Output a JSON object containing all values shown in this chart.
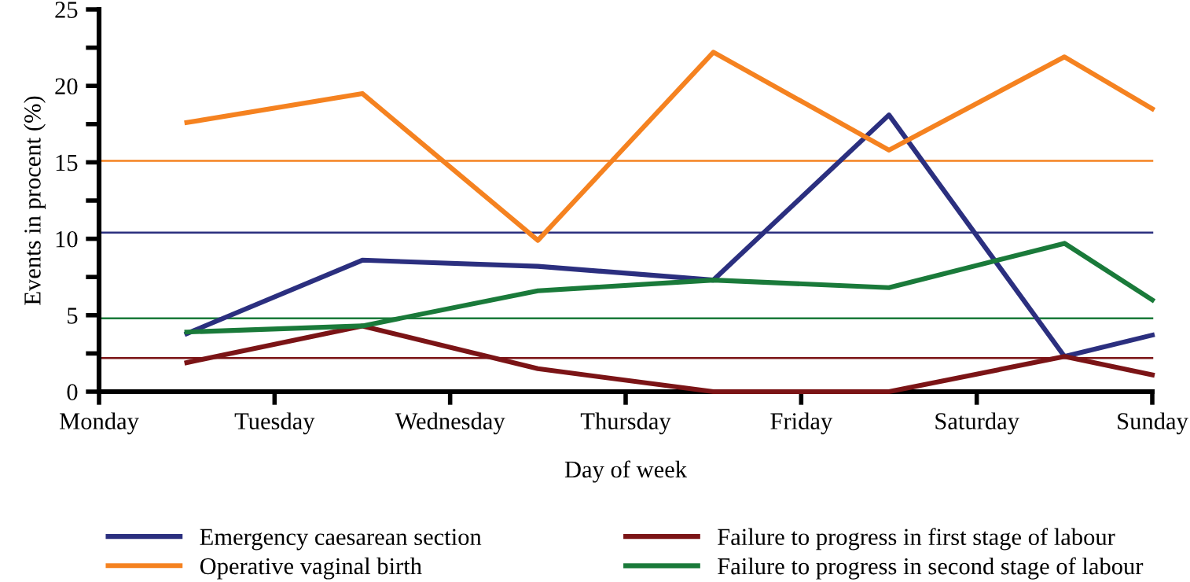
{
  "chart_data": {
    "type": "line",
    "xlabel": "Day of week",
    "ylabel": "Events in procent (%)",
    "categories": [
      "Monday",
      null,
      "Tuesday",
      null,
      "Wednesday",
      null,
      "Thursday",
      null,
      "Friday",
      null,
      "Saturday",
      null,
      "Sunday"
    ],
    "ylim": [
      0,
      25
    ],
    "yticks": [
      0,
      {
        "value": 2.5,
        "label": null
      },
      5,
      {
        "value": 7.5,
        "label": null
      },
      10,
      {
        "value": 12.5,
        "label": null
      },
      15,
      {
        "value": 17.5,
        "label": null
      },
      20,
      {
        "value": 22.5,
        "label": null
      },
      25
    ],
    "series": [
      {
        "name": "Emergency caesarean section",
        "color": "#2b2f7f",
        "values": [
          null,
          3.8,
          null,
          8.6,
          null,
          8.2,
          null,
          7.3,
          null,
          18.1,
          null,
          2.3,
          3.7
        ]
      },
      {
        "name": "Operative vaginal birth",
        "color": "#f58220",
        "values": [
          null,
          17.6,
          null,
          19.5,
          null,
          9.9,
          null,
          22.2,
          null,
          15.8,
          null,
          21.9,
          18.5
        ]
      },
      {
        "name": "Failure to progress in first stage of labour",
        "color": "#7b1416",
        "values": [
          null,
          1.9,
          null,
          4.3,
          null,
          1.5,
          null,
          0,
          null,
          0,
          null,
          2.3,
          1.1
        ]
      },
      {
        "name": "Failure to progress in second stage of labour",
        "color": "#1a7a3a",
        "values": [
          null,
          3.9,
          null,
          4.3,
          null,
          6.6,
          null,
          7.3,
          null,
          6.8,
          null,
          9.7,
          6.0
        ]
      }
    ],
    "ref_lines": [
      {
        "axis": "y",
        "value": 10.4,
        "color": "#2b2f7f"
      },
      {
        "axis": "y",
        "value": 15.1,
        "color": "#f58220"
      },
      {
        "axis": "y",
        "value": 2.2,
        "color": "#7b1416"
      },
      {
        "axis": "y",
        "value": 4.8,
        "color": "#1a7a3a"
      }
    ],
    "legend": "bottom",
    "grid": false,
    "marker": "none",
    "line_style": "solid"
  }
}
